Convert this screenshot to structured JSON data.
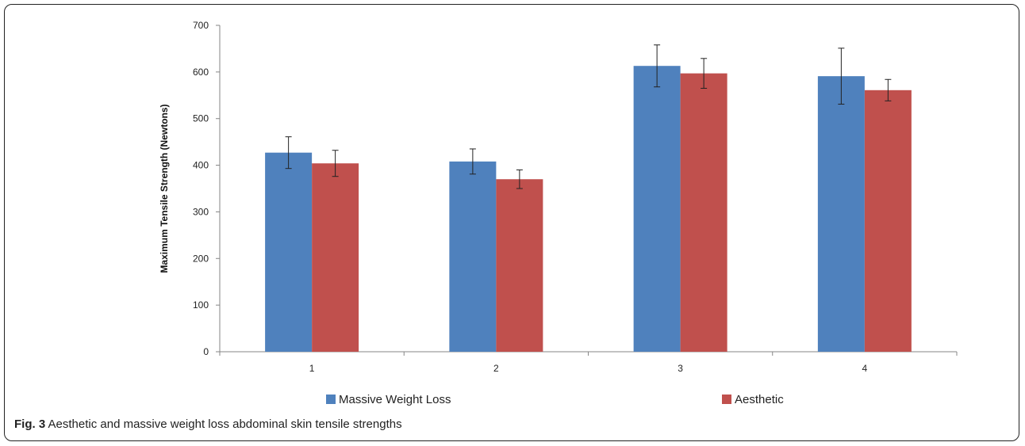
{
  "caption": {
    "label": "Fig. 3",
    "text": "Aesthetic and massive weight loss abdominal skin tensile strengths"
  },
  "chart_data": {
    "type": "bar",
    "title": "",
    "xlabel": "",
    "ylabel": "Maximum Tensile Strength (Newtons)",
    "ylim": [
      0,
      700
    ],
    "yticks": [
      0,
      100,
      200,
      300,
      400,
      500,
      600,
      700
    ],
    "categories": [
      "1",
      "2",
      "3",
      "4"
    ],
    "grid": false,
    "legend_position": "bottom",
    "series": [
      {
        "name": "Massive Weight Loss",
        "color": "#4f81bd",
        "values": [
          427,
          408,
          613,
          591
        ],
        "error": [
          34,
          27,
          45,
          60
        ]
      },
      {
        "name": "Aesthetic",
        "color": "#c0504d",
        "values": [
          404,
          370,
          597,
          561
        ],
        "error": [
          28,
          20,
          32,
          23
        ]
      }
    ]
  }
}
